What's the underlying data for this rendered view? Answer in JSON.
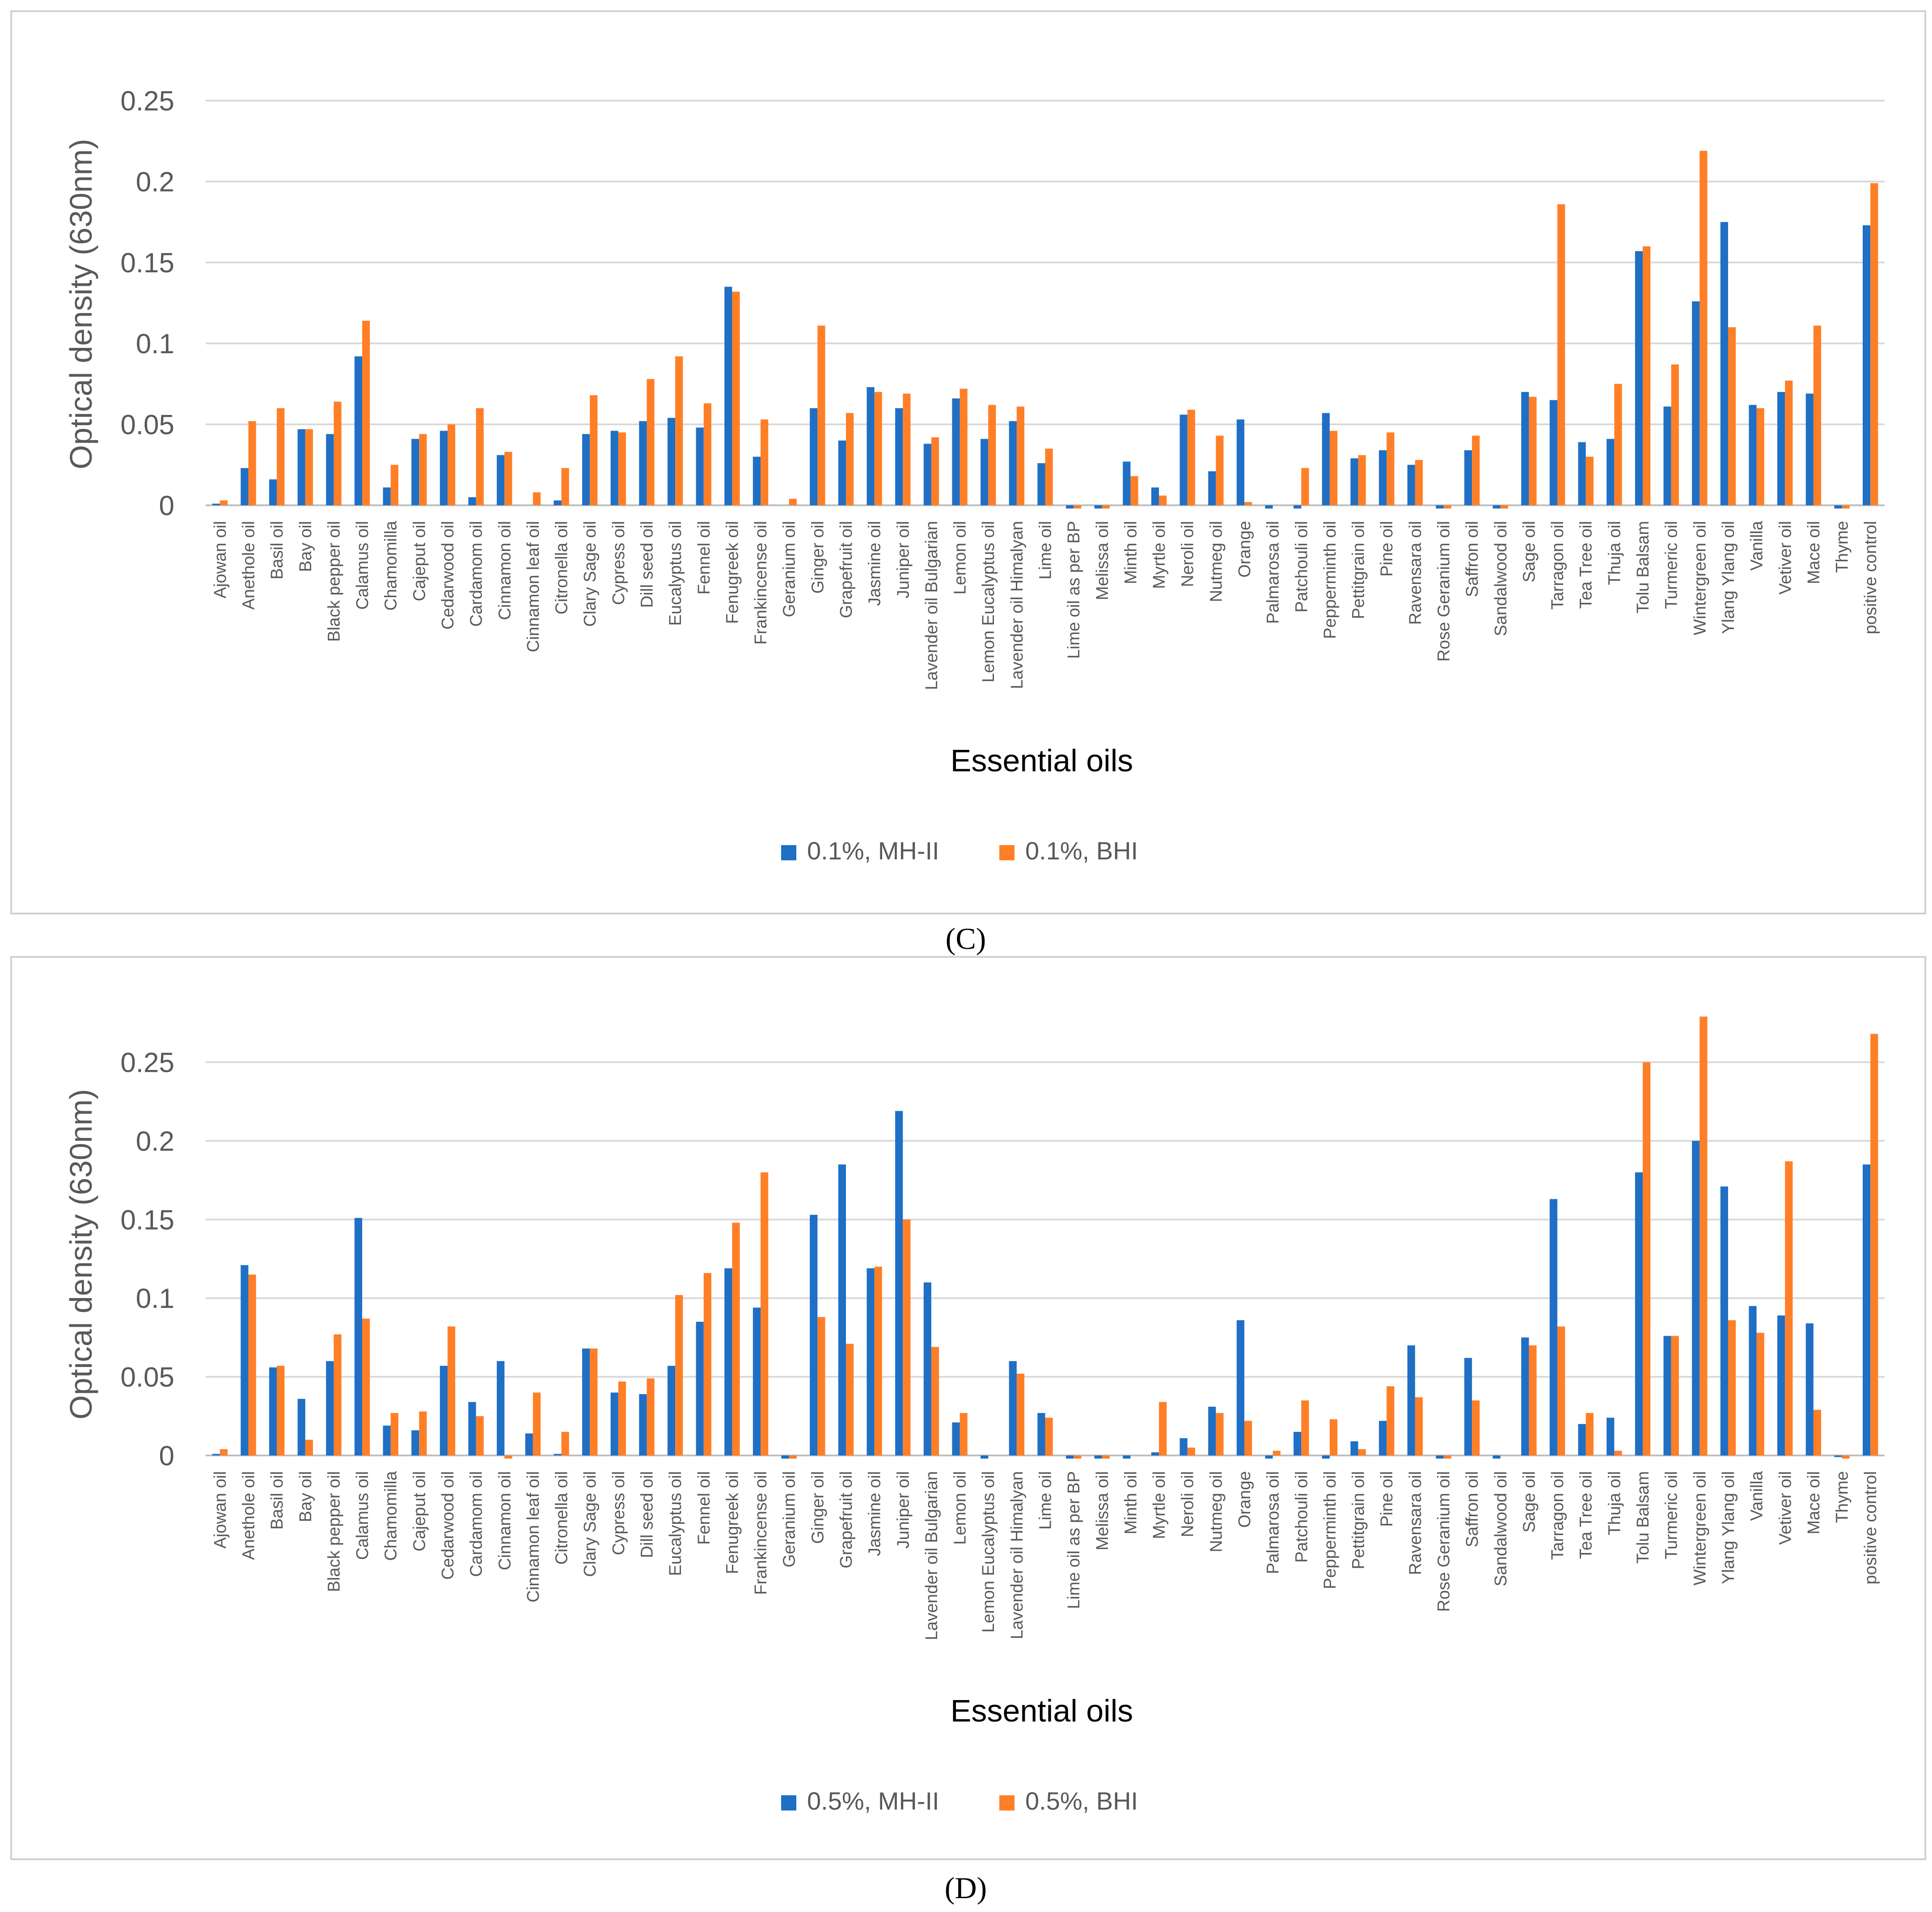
{
  "colors": {
    "mh": "#1f6fc5",
    "bhi": "#ff7f27",
    "grid": "#d9d9d9",
    "axis_text": "#595959",
    "frame": "#bfbfbf"
  },
  "chart_data": [
    {
      "type": "bar",
      "panel": "C",
      "xlabel": "Essential oils",
      "ylabel": "Optical density (630nm)",
      "ylim": [
        0,
        0.25
      ],
      "yticks": [
        "0",
        "0.05",
        "0.1",
        "0.15",
        "0.2",
        "0.25"
      ],
      "grid": true,
      "legend": "bottom-center",
      "categories": [
        "Ajowan oil",
        "Anethole oil",
        "Basil oil",
        "Bay oil",
        "Black pepper oil",
        "Calamus oil",
        "Chamomilla",
        "Cajeput oil",
        "Cedarwood oil",
        "Cardamom oil",
        "Cinnamon oil",
        "Cinnamon leaf oil",
        "Citronella oil",
        "Clary Sage oil",
        "Cypress oil",
        "Dill seed oil",
        "Eucalyptus oil",
        "Fennel oil",
        "Fenugreek oil",
        "Frankincense oil",
        "Geranium oil",
        "Ginger oil",
        "Grapefruit oil",
        "Jasmine oil",
        "Juniper oil",
        "Lavender oil Bulgarian",
        "Lemon oil",
        "Lemon Eucalyptus oil",
        "Lavender oil Himalyan",
        "Lime oil",
        "Lime oil as per BP",
        "Melissa oil",
        "Minth oil",
        "Myrtle oil",
        "Neroli oil",
        "Nutmeg oil",
        "Orange",
        "Palmarosa oil",
        "Patchouli oil",
        "Pepperminth oil",
        "Pettitgrain oil",
        "Pine oil",
        "Ravensara oil",
        "Rose Geranium oil",
        "Saffron oil",
        "Sandalwood oil",
        "Sage oil",
        "Tarragon oil",
        "Tea Tree oil",
        "Thuja oil",
        "Tolu Balsam",
        "Turmeric oil",
        "Wintergreen oil",
        "Ylang Ylang oil",
        "Vanilla",
        "Vetiver oil",
        "Mace oil",
        "Thyme",
        "positive control"
      ],
      "series": [
        {
          "name": "0.1%, MH-II",
          "values": [
            0.001,
            0.023,
            0.016,
            0.047,
            0.044,
            0.092,
            0.011,
            0.041,
            0.046,
            0.005,
            0.031,
            0.0,
            0.003,
            0.044,
            0.046,
            0.052,
            0.054,
            0.048,
            0.135,
            0.03,
            0.0,
            0.06,
            0.04,
            0.073,
            0.06,
            0.038,
            0.066,
            0.041,
            0.052,
            0.026,
            -0.002,
            -0.002,
            0.027,
            0.011,
            0.056,
            0.021,
            0.053,
            -0.002,
            -0.002,
            0.057,
            0.029,
            0.034,
            0.025,
            -0.002,
            0.034,
            -0.002,
            0.07,
            0.065,
            0.039,
            0.041,
            0.157,
            0.061,
            0.126,
            0.175,
            0.062,
            0.07,
            0.069,
            -0.002,
            0.173
          ]
        },
        {
          "name": "0.1%, BHI",
          "values": [
            0.003,
            0.052,
            0.06,
            0.047,
            0.064,
            0.114,
            0.025,
            0.044,
            0.05,
            0.06,
            0.033,
            0.008,
            0.023,
            0.068,
            0.045,
            0.078,
            0.092,
            0.063,
            0.132,
            0.053,
            0.004,
            0.111,
            0.057,
            0.07,
            0.069,
            0.042,
            0.072,
            0.062,
            0.061,
            0.035,
            -0.002,
            -0.002,
            0.018,
            0.006,
            0.059,
            0.043,
            0.002,
            0.0,
            0.023,
            0.046,
            0.031,
            0.045,
            0.028,
            -0.002,
            0.043,
            -0.002,
            0.067,
            0.186,
            0.03,
            0.075,
            0.16,
            0.087,
            0.219,
            0.11,
            0.06,
            0.077,
            0.111,
            -0.002,
            0.199
          ]
        }
      ],
      "caption": "(C)"
    },
    {
      "type": "bar",
      "panel": "D",
      "xlabel": "Essential oils",
      "ylabel": "Optical density (630nm)",
      "ylim": [
        0,
        0.28
      ],
      "yticks": [
        "0",
        "0.05",
        "0.1",
        "0.15",
        "0.2",
        "0.25"
      ],
      "grid": true,
      "legend": "bottom-center",
      "categories": [
        "Ajowan oil",
        "Anethole oil",
        "Basil oil",
        "Bay oil",
        "Black pepper oil",
        "Calamus oil",
        "Chamomilla",
        "Cajeput oil",
        "Cedarwood oil",
        "Cardamom oil",
        "Cinnamon oil",
        "Cinnamon leaf oil",
        "Citronella oil",
        "Clary Sage oil",
        "Cypress oil",
        "Dill seed oil",
        "Eucalyptus oil",
        "Fennel oil",
        "Fenugreek oil",
        "Frankincense oil",
        "Geranium oil",
        "Ginger oil",
        "Grapefruit oil",
        "Jasmine oil",
        "Juniper oil",
        "Lavender oil Bulgarian",
        "Lemon oil",
        "Lemon Eucalyptus oil",
        "Lavender oil Himalyan",
        "Lime oil",
        "Lime oil as per BP",
        "Melissa oil",
        "Minth oil",
        "Myrtle oil",
        "Neroli oil",
        "Nutmeg oil",
        "Orange",
        "Palmarosa oil",
        "Patchouli oil",
        "Pepperminth oil",
        "Pettitgrain oil",
        "Pine oil",
        "Ravensara oil",
        "Rose Geranium oil",
        "Saffron oil",
        "Sandalwood oil",
        "Sage oil",
        "Tarragon oil",
        "Tea Tree oil",
        "Thuja oil",
        "Tolu Balsam",
        "Turmeric oil",
        "Wintergreen oil",
        "Ylang Ylang oil",
        "Vanilla",
        "Vetiver oil",
        "Mace oil",
        "Thyme",
        "positive control"
      ],
      "series": [
        {
          "name": "0.5%, MH-II",
          "values": [
            0.001,
            0.121,
            0.056,
            0.036,
            0.06,
            0.151,
            0.019,
            0.016,
            0.057,
            0.034,
            0.06,
            0.014,
            0.001,
            0.068,
            0.04,
            0.039,
            0.057,
            0.085,
            0.119,
            0.094,
            -0.002,
            0.153,
            0.185,
            0.119,
            0.219,
            0.11,
            0.021,
            -0.002,
            0.06,
            0.027,
            -0.002,
            -0.002,
            -0.002,
            0.002,
            0.011,
            0.031,
            0.086,
            -0.002,
            0.015,
            -0.002,
            0.009,
            0.022,
            0.07,
            -0.002,
            0.062,
            -0.002,
            0.075,
            0.163,
            0.02,
            0.024,
            0.18,
            0.076,
            0.2,
            0.171,
            0.095,
            0.089,
            0.084,
            -0.001,
            0.185
          ]
        },
        {
          "name": "0.5%, BHI",
          "values": [
            0.004,
            0.115,
            0.057,
            0.01,
            0.077,
            0.087,
            0.027,
            0.028,
            0.082,
            0.025,
            -0.002,
            0.04,
            0.015,
            0.068,
            0.047,
            0.049,
            0.102,
            0.116,
            0.148,
            0.18,
            -0.002,
            0.088,
            0.071,
            0.12,
            0.15,
            0.069,
            0.027,
            0.0,
            0.052,
            0.024,
            -0.002,
            -0.002,
            0.0,
            0.034,
            0.005,
            0.027,
            0.022,
            0.003,
            0.035,
            0.023,
            0.004,
            0.044,
            0.037,
            -0.002,
            0.035,
            0.0,
            0.07,
            0.082,
            0.027,
            0.003,
            0.25,
            0.076,
            0.279,
            0.086,
            0.078,
            0.187,
            0.029,
            -0.002,
            0.268
          ]
        }
      ],
      "caption": "(D)"
    }
  ]
}
